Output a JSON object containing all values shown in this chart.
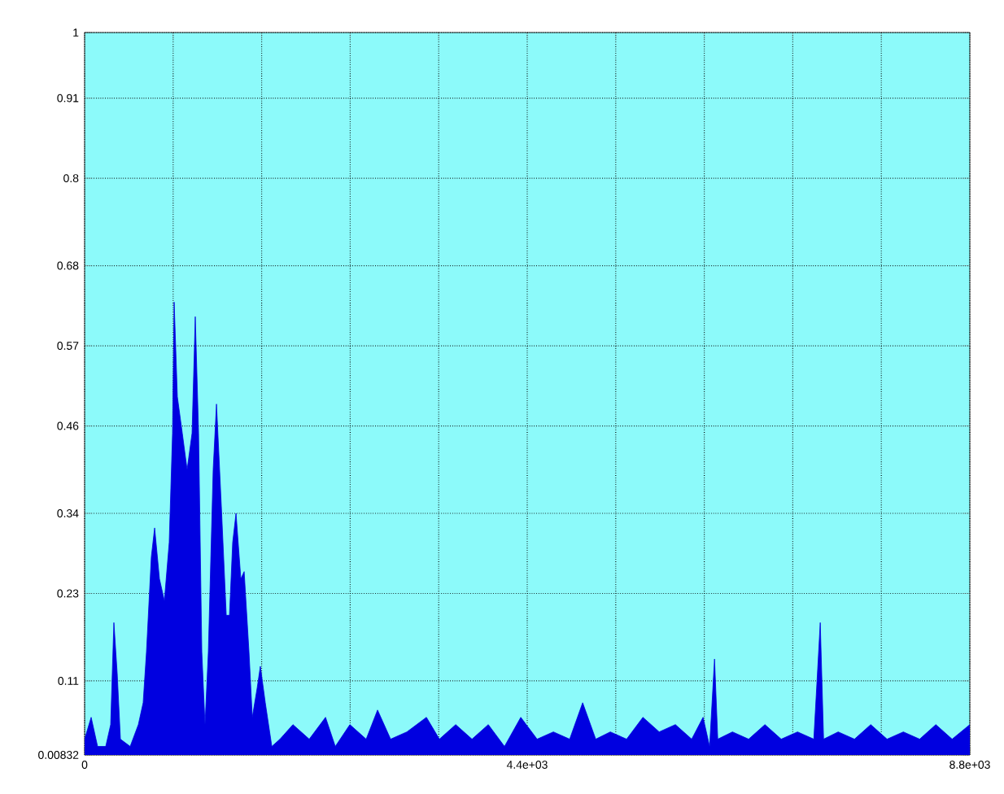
{
  "chart_data": {
    "type": "area",
    "x": [
      0,
      65,
      129,
      210,
      259,
      291,
      324,
      356,
      453,
      534,
      582,
      615,
      663,
      696,
      744,
      793,
      841,
      874,
      890,
      922,
      971,
      1019,
      1068,
      1100,
      1133,
      1165,
      1197,
      1230,
      1278,
      1311,
      1359,
      1408,
      1440,
      1472,
      1505,
      1553,
      1586,
      1634,
      1667,
      1715,
      1747,
      1796,
      1861,
      1942,
      2071,
      2233,
      2395,
      2492,
      2637,
      2799,
      2912,
      3042,
      3204,
      3398,
      3527,
      3689,
      3851,
      4013,
      4174,
      4336,
      4498,
      4660,
      4822,
      4951,
      5081,
      5226,
      5388,
      5550,
      5712,
      5873,
      6035,
      6148,
      6213,
      6262,
      6294,
      6440,
      6601,
      6763,
      6925,
      7087,
      7249,
      7313,
      7346,
      7491,
      7653,
      7815,
      7977,
      8139,
      8301,
      8462,
      8624,
      8800
    ],
    "values": [
      0.03,
      0.06,
      0.02,
      0.02,
      0.05,
      0.19,
      0.12,
      0.03,
      0.02,
      0.05,
      0.08,
      0.15,
      0.28,
      0.32,
      0.25,
      0.22,
      0.3,
      0.45,
      0.63,
      0.5,
      0.45,
      0.4,
      0.45,
      0.61,
      0.45,
      0.15,
      0.05,
      0.15,
      0.4,
      0.49,
      0.35,
      0.2,
      0.2,
      0.3,
      0.34,
      0.25,
      0.26,
      0.15,
      0.06,
      0.1,
      0.13,
      0.08,
      0.02,
      0.03,
      0.05,
      0.03,
      0.06,
      0.02,
      0.05,
      0.03,
      0.07,
      0.03,
      0.04,
      0.06,
      0.03,
      0.05,
      0.03,
      0.05,
      0.02,
      0.06,
      0.03,
      0.04,
      0.03,
      0.08,
      0.03,
      0.04,
      0.03,
      0.06,
      0.04,
      0.05,
      0.03,
      0.06,
      0.02,
      0.14,
      0.03,
      0.04,
      0.03,
      0.05,
      0.03,
      0.04,
      0.03,
      0.19,
      0.03,
      0.04,
      0.03,
      0.05,
      0.03,
      0.04,
      0.03,
      0.05,
      0.03,
      0.05
    ],
    "color": "#0000e0",
    "xlim": [
      0,
      8800
    ],
    "xticks": [
      0,
      {
        "value": 880,
        "label": null
      },
      {
        "value": 1760,
        "label": null
      },
      {
        "value": 2640,
        "label": null
      },
      {
        "value": 3520,
        "label": null
      },
      {
        "value": 4400,
        "label": "4.4e+03"
      },
      {
        "value": 5280,
        "label": null
      },
      {
        "value": 6160,
        "label": null
      },
      {
        "value": 7040,
        "label": null
      },
      {
        "value": 7920,
        "label": null
      },
      {
        "value": 8800,
        "label": "8.8e+03"
      }
    ],
    "ylim": [
      0.00832,
      1
    ],
    "yticks": [
      0.00832,
      0.11,
      0.23,
      0.34,
      0.46,
      0.57,
      0.68,
      0.8,
      0.91,
      1
    ],
    "grid": true
  }
}
